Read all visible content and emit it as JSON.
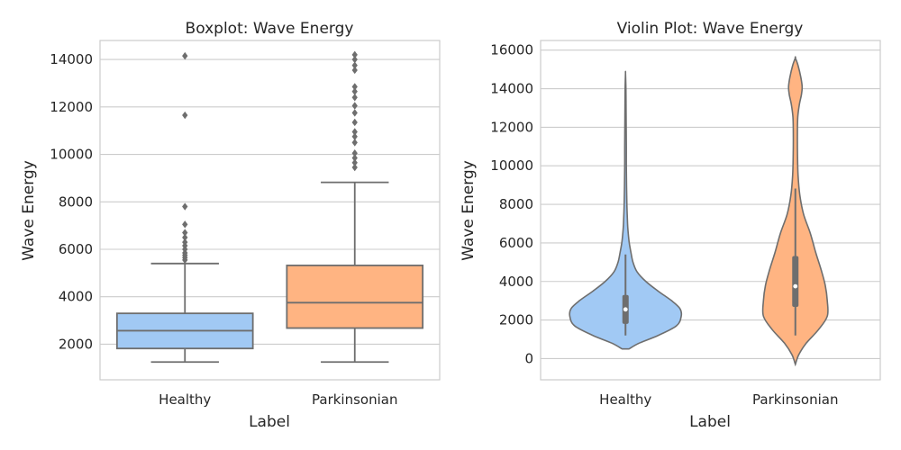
{
  "colors": {
    "healthy_fill": "#a1c9f4",
    "parkinsonian_fill": "#ffb482",
    "line": "#6e6e6e",
    "grid": "#cccccc",
    "text": "#262626"
  },
  "chart_data": [
    {
      "type": "box",
      "title": "Boxplot: Wave Energy",
      "xlabel": "Label",
      "ylabel": "Wave Energy",
      "categories": [
        "Healthy",
        "Parkinsonian"
      ],
      "ylim": [
        500,
        14800
      ],
      "yticks": [
        2000,
        4000,
        6000,
        8000,
        10000,
        12000,
        14000
      ],
      "grid": true,
      "series": [
        {
          "category": "Healthy",
          "whisker_low": 1250,
          "q1": 1820,
          "median": 2570,
          "q3": 3300,
          "whisker_high": 5400,
          "outliers": [
            5550,
            5650,
            5750,
            5850,
            6000,
            6150,
            6300,
            6500,
            6700,
            7050,
            7800,
            11650,
            14150
          ]
        },
        {
          "category": "Parkinsonian",
          "whisker_low": 1250,
          "q1": 2680,
          "median": 3750,
          "q3": 5320,
          "whisker_high": 8820,
          "outliers": [
            9450,
            9650,
            9850,
            10050,
            10500,
            10750,
            10950,
            11350,
            11750,
            12050,
            12400,
            12650,
            12850,
            13550,
            13750,
            14000,
            14200
          ]
        }
      ]
    },
    {
      "type": "violin",
      "title": "Violin Plot: Wave Energy",
      "xlabel": "Label",
      "ylabel": "Wave Energy",
      "categories": [
        "Healthy",
        "Parkinsonian"
      ],
      "ylim": [
        -1100,
        16500
      ],
      "yticks": [
        0,
        2000,
        4000,
        6000,
        8000,
        10000,
        12000,
        14000,
        16000
      ],
      "grid": true,
      "series": [
        {
          "category": "Healthy",
          "q1": 1800,
          "median": 2550,
          "q3": 3300,
          "whisker_low": 1200,
          "whisker_high": 5400,
          "density": [
            [
              500,
              0.05
            ],
            [
              800,
              0.2
            ],
            [
              1200,
              0.48
            ],
            [
              1700,
              0.75
            ],
            [
              2200,
              0.82
            ],
            [
              2600,
              0.8
            ],
            [
              3000,
              0.68
            ],
            [
              3500,
              0.48
            ],
            [
              4000,
              0.3
            ],
            [
              4500,
              0.17
            ],
            [
              5000,
              0.11
            ],
            [
              5500,
              0.08
            ],
            [
              6000,
              0.055
            ],
            [
              6500,
              0.04
            ],
            [
              7000,
              0.03
            ],
            [
              8000,
              0.02
            ],
            [
              9000,
              0.015
            ],
            [
              10000,
              0.012
            ],
            [
              11000,
              0.012
            ],
            [
              12000,
              0.01
            ],
            [
              13000,
              0.008
            ],
            [
              14000,
              0.006
            ],
            [
              14800,
              0.0
            ]
          ]
        },
        {
          "category": "Parkinsonian",
          "q1": 2680,
          "median": 3750,
          "q3": 5320,
          "whisker_low": 1200,
          "whisker_high": 8820,
          "density": [
            [
              -300,
              0.0
            ],
            [
              200,
              0.05
            ],
            [
              800,
              0.16
            ],
            [
              1500,
              0.34
            ],
            [
              2200,
              0.47
            ],
            [
              3000,
              0.47
            ],
            [
              3800,
              0.44
            ],
            [
              4600,
              0.38
            ],
            [
              5500,
              0.3
            ],
            [
              6500,
              0.22
            ],
            [
              7500,
              0.12
            ],
            [
              8500,
              0.065
            ],
            [
              9500,
              0.04
            ],
            [
              10500,
              0.032
            ],
            [
              11500,
              0.03
            ],
            [
              12500,
              0.035
            ],
            [
              13200,
              0.06
            ],
            [
              13700,
              0.09
            ],
            [
              14100,
              0.1
            ],
            [
              14600,
              0.08
            ],
            [
              15200,
              0.04
            ],
            [
              15600,
              0.0
            ]
          ]
        }
      ]
    }
  ]
}
